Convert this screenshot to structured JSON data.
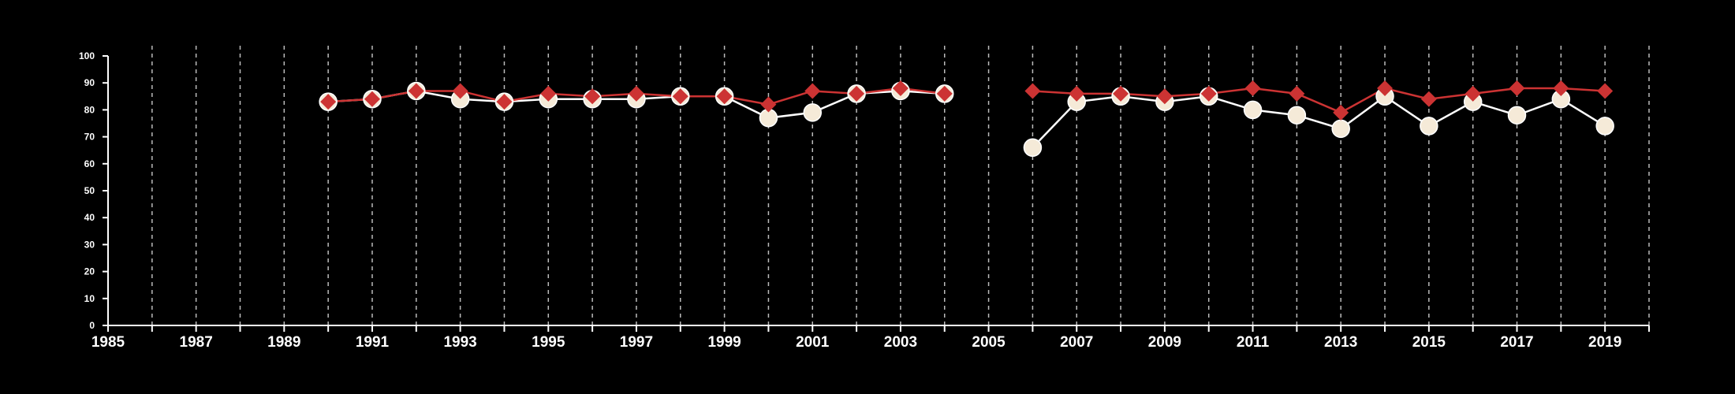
{
  "chart_data": {
    "type": "line",
    "title": "",
    "xlabel": "",
    "ylabel": "",
    "xlim": [
      1985,
      2020
    ],
    "ylim": [
      0,
      100
    ],
    "x_ticks": [
      "1985",
      "1987",
      "1989",
      "1991",
      "1993",
      "1995",
      "1997",
      "1999",
      "2001",
      "2003",
      "2005",
      "2007",
      "2009",
      "2011",
      "2013",
      "2015",
      "2017",
      "2019"
    ],
    "y_ticks": [
      "0",
      "10",
      "20",
      "30",
      "40",
      "50",
      "60",
      "70",
      "80",
      "90",
      "100"
    ],
    "grid": "vertical dashed lines at each year",
    "series": [
      {
        "marker": "circle",
        "color": "#f5ead8",
        "line_color": "#ffffff",
        "points": [
          [
            1990,
            83
          ],
          [
            1991,
            84
          ],
          [
            1992,
            87
          ],
          [
            1993,
            84
          ],
          [
            1994,
            83
          ],
          [
            1995,
            84
          ],
          [
            1996,
            84
          ],
          [
            1997,
            84
          ],
          [
            1998,
            85
          ],
          [
            1999,
            85
          ],
          [
            2000,
            77
          ],
          [
            2001,
            79
          ],
          [
            2002,
            86
          ],
          [
            2003,
            87
          ],
          [
            2004,
            86
          ],
          [
            2006,
            66
          ],
          [
            2007,
            83
          ],
          [
            2008,
            85
          ],
          [
            2009,
            83
          ],
          [
            2010,
            85
          ],
          [
            2011,
            80
          ],
          [
            2012,
            78
          ],
          [
            2013,
            73
          ],
          [
            2014,
            85
          ],
          [
            2015,
            74
          ],
          [
            2016,
            83
          ],
          [
            2017,
            78
          ],
          [
            2018,
            84
          ],
          [
            2019,
            74
          ]
        ]
      },
      {
        "marker": "diamond",
        "color": "#cc3333",
        "line_color": "#cc3333",
        "points": [
          [
            1990,
            83
          ],
          [
            1991,
            84
          ],
          [
            1992,
            87
          ],
          [
            1993,
            87
          ],
          [
            1994,
            83
          ],
          [
            1995,
            86
          ],
          [
            1996,
            85
          ],
          [
            1997,
            86
          ],
          [
            1998,
            85
          ],
          [
            1999,
            85
          ],
          [
            2000,
            82
          ],
          [
            2001,
            87
          ],
          [
            2002,
            86
          ],
          [
            2003,
            88
          ],
          [
            2004,
            86
          ],
          [
            2006,
            87
          ],
          [
            2007,
            86
          ],
          [
            2008,
            86
          ],
          [
            2009,
            85
          ],
          [
            2010,
            86
          ],
          [
            2011,
            88
          ],
          [
            2012,
            86
          ],
          [
            2013,
            79
          ],
          [
            2014,
            88
          ],
          [
            2015,
            84
          ],
          [
            2016,
            86
          ],
          [
            2017,
            88
          ],
          [
            2018,
            88
          ],
          [
            2019,
            87
          ]
        ]
      }
    ]
  }
}
